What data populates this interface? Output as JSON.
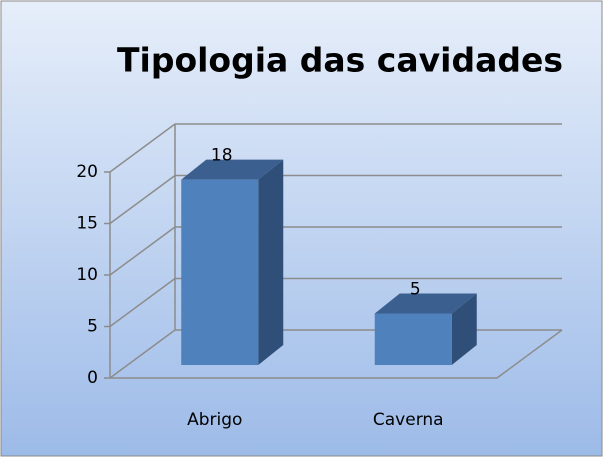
{
  "chart_data": {
    "type": "bar3d",
    "title": "Tipologia das cavidades",
    "categories": [
      "Abrigo",
      "Caverna"
    ],
    "values": [
      18,
      5
    ],
    "color": "#4f81bd",
    "ylim": [
      0,
      20
    ],
    "yticks": [
      0,
      5,
      10,
      15,
      20
    ],
    "grid": true
  }
}
